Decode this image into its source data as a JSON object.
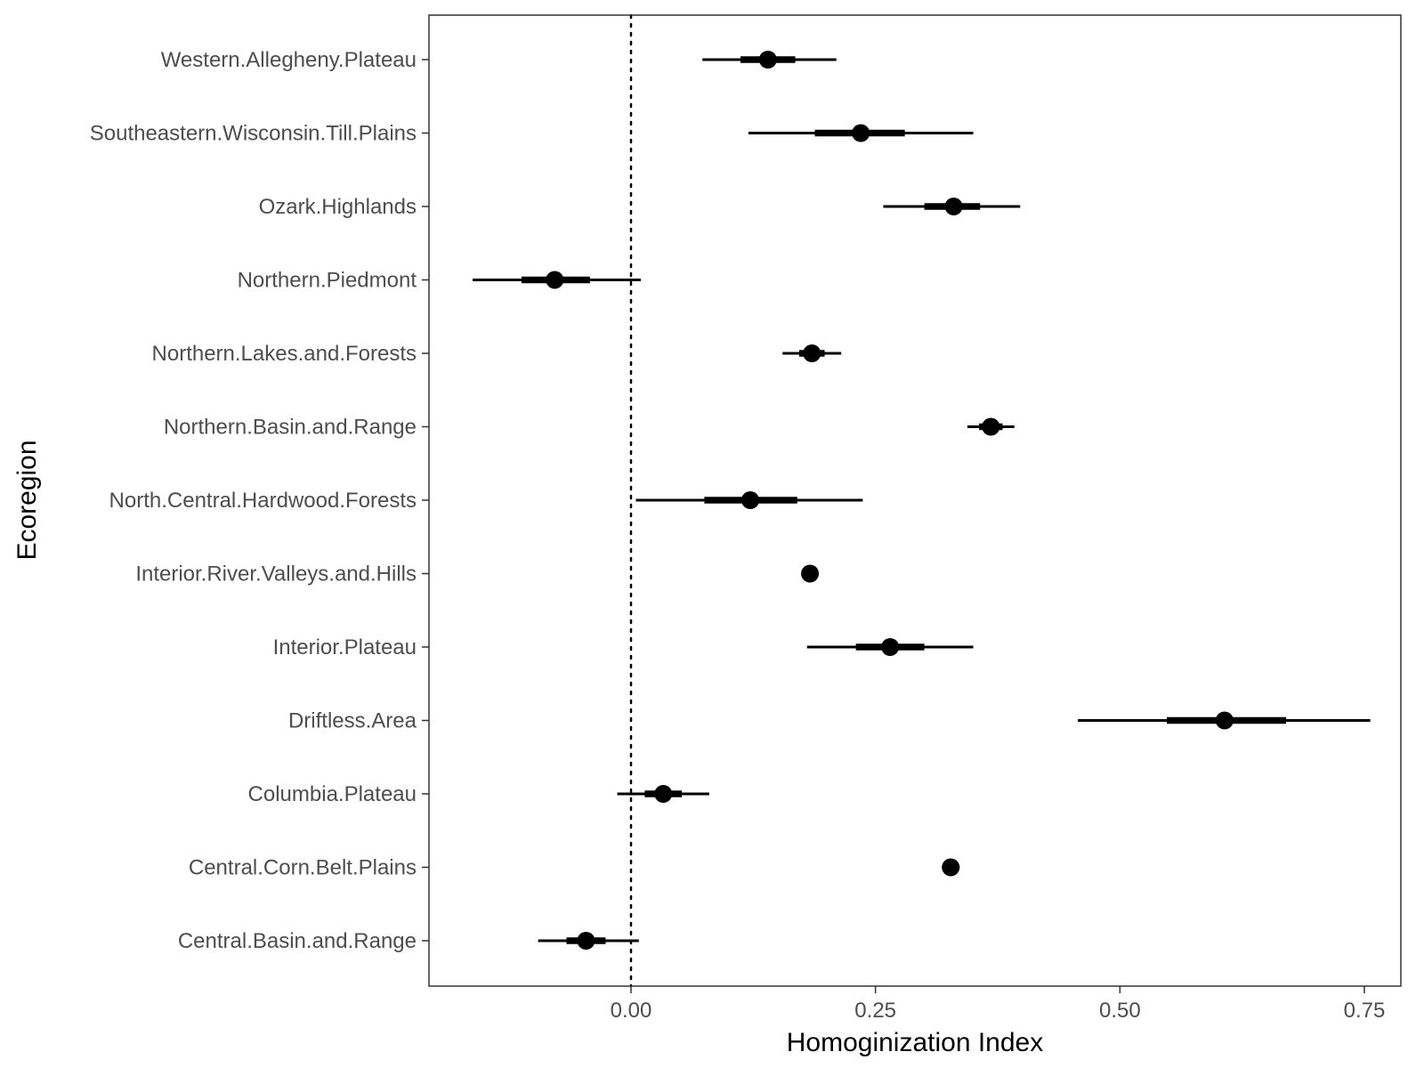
{
  "chart_data": {
    "type": "forest",
    "title": "",
    "xlabel": "Homoginization Index",
    "ylabel": "Ecoregion",
    "xlim": [
      -0.21,
      0.77
    ],
    "x_ticks": [
      0.0,
      0.25,
      0.5,
      0.75
    ],
    "x_tick_labels": [
      "0.00",
      "0.25",
      "0.50",
      "0.75"
    ],
    "reference_line": {
      "x": 0.0,
      "style": "dotted"
    },
    "grid": false,
    "series": [
      {
        "name": "Western.Allegheny.Plateau",
        "estimate": 0.14,
        "outer": [
          0.073,
          0.21
        ],
        "inner": [
          0.112,
          0.168
        ]
      },
      {
        "name": "Southeastern.Wisconsin.Till.Plains",
        "estimate": 0.235,
        "outer": [
          0.12,
          0.35
        ],
        "inner": [
          0.188,
          0.28
        ]
      },
      {
        "name": "Ozark.Highlands",
        "estimate": 0.33,
        "outer": [
          0.258,
          0.398
        ],
        "inner": [
          0.3,
          0.357
        ]
      },
      {
        "name": "Northern.Piedmont",
        "estimate": -0.078,
        "outer": [
          -0.162,
          0.01
        ],
        "inner": [
          -0.112,
          -0.042
        ]
      },
      {
        "name": "Northern.Lakes.and.Forests",
        "estimate": 0.185,
        "outer": [
          0.155,
          0.215
        ],
        "inner": [
          0.172,
          0.198
        ]
      },
      {
        "name": "Northern.Basin.and.Range",
        "estimate": 0.368,
        "outer": [
          0.344,
          0.392
        ],
        "inner": [
          0.356,
          0.38
        ]
      },
      {
        "name": "North.Central.Hardwood.Forests",
        "estimate": 0.122,
        "outer": [
          0.005,
          0.237
        ],
        "inner": [
          0.075,
          0.17
        ]
      },
      {
        "name": "Interior.River.Valleys.and.Hills",
        "estimate": 0.183,
        "outer": [
          0.183,
          0.183
        ],
        "inner": [
          0.183,
          0.183
        ]
      },
      {
        "name": "Interior.Plateau",
        "estimate": 0.265,
        "outer": [
          0.18,
          0.35
        ],
        "inner": [
          0.23,
          0.3
        ]
      },
      {
        "name": "Driftless.Area",
        "estimate": 0.607,
        "outer": [
          0.457,
          0.756
        ],
        "inner": [
          0.548,
          0.67
        ]
      },
      {
        "name": "Columbia.Plateau",
        "estimate": 0.033,
        "outer": [
          -0.014,
          0.08
        ],
        "inner": [
          0.014,
          0.052
        ]
      },
      {
        "name": "Central.Corn.Belt.Plains",
        "estimate": 0.327,
        "outer": [
          0.318,
          0.336
        ],
        "inner": [
          0.321,
          0.333
        ]
      },
      {
        "name": "Central.Basin.and.Range",
        "estimate": -0.046,
        "outer": [
          -0.095,
          0.008
        ],
        "inner": [
          -0.066,
          -0.026
        ]
      }
    ]
  },
  "colors": {
    "mark": "#000000",
    "panel_border": "#333333",
    "tick": "#333333",
    "tick_label": "#4d4d4d",
    "background": "#ffffff"
  }
}
